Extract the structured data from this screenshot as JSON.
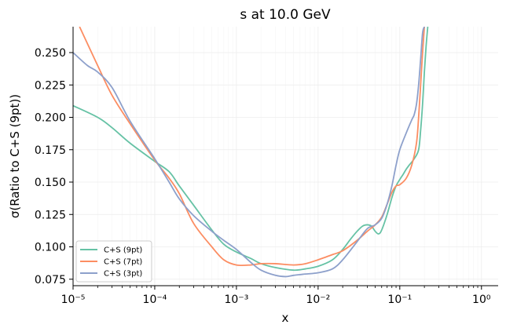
{
  "chart_data": {
    "type": "line",
    "title": "s at 10.0 GeV",
    "xlabel": "x",
    "ylabel": "σ(Ratio to C+S (9pt))",
    "xscale": "log",
    "xlim": [
      1e-05,
      1.6
    ],
    "ylim": [
      0.07,
      0.27
    ],
    "grid": true,
    "legend_position": "lower-left",
    "x_ticks": [
      {
        "value": 1e-05,
        "label": "10⁻⁵"
      },
      {
        "value": 0.0001,
        "label": "10⁻⁴"
      },
      {
        "value": 0.001,
        "label": "10⁻³"
      },
      {
        "value": 0.01,
        "label": "10⁻²"
      },
      {
        "value": 0.1,
        "label": "10⁻¹"
      },
      {
        "value": 1,
        "label": "10⁰"
      }
    ],
    "y_ticks": [
      {
        "value": 0.075,
        "label": "0.075"
      },
      {
        "value": 0.1,
        "label": "0.100"
      },
      {
        "value": 0.125,
        "label": "0.125"
      },
      {
        "value": 0.15,
        "label": "0.150"
      },
      {
        "value": 0.175,
        "label": "0.175"
      },
      {
        "value": 0.2,
        "label": "0.200"
      },
      {
        "value": 0.225,
        "label": "0.225"
      },
      {
        "value": 0.25,
        "label": "0.250"
      }
    ],
    "series": [
      {
        "name": "C+S (9pt)",
        "color": "#66c2a5",
        "x": [
          1e-05,
          2e-05,
          3e-05,
          5e-05,
          0.0001,
          0.00015,
          0.0002,
          0.0003,
          0.0005,
          0.0007,
          0.001,
          0.0015,
          0.002,
          0.003,
          0.005,
          0.007,
          0.01,
          0.015,
          0.02,
          0.025,
          0.03,
          0.035,
          0.04,
          0.045,
          0.05,
          0.055,
          0.06,
          0.07,
          0.08,
          0.09,
          0.1,
          0.11,
          0.12,
          0.13,
          0.15,
          0.17,
          0.18,
          0.19,
          0.2,
          0.21,
          0.22
        ],
        "y": [
          0.209,
          0.2,
          0.192,
          0.18,
          0.166,
          0.158,
          0.147,
          0.132,
          0.113,
          0.102,
          0.096,
          0.091,
          0.087,
          0.084,
          0.082,
          0.083,
          0.085,
          0.09,
          0.098,
          0.106,
          0.112,
          0.116,
          0.117,
          0.116,
          0.112,
          0.11,
          0.113,
          0.125,
          0.138,
          0.147,
          0.152,
          0.156,
          0.16,
          0.163,
          0.168,
          0.175,
          0.19,
          0.21,
          0.235,
          0.255,
          0.27
        ]
      },
      {
        "name": "C+S (7pt)",
        "color": "#fc8d62",
        "x": [
          1.2e-05,
          2e-05,
          3e-05,
          5e-05,
          0.0001,
          0.00015,
          0.0002,
          0.0003,
          0.0005,
          0.0007,
          0.001,
          0.0015,
          0.002,
          0.003,
          0.005,
          0.007,
          0.01,
          0.015,
          0.02,
          0.03,
          0.04,
          0.05,
          0.06,
          0.07,
          0.08,
          0.09,
          0.1,
          0.12,
          0.14,
          0.16,
          0.17,
          0.18,
          0.19,
          0.2
        ],
        "y": [
          0.27,
          0.24,
          0.217,
          0.195,
          0.167,
          0.153,
          0.141,
          0.118,
          0.1,
          0.09,
          0.086,
          0.086,
          0.087,
          0.087,
          0.086,
          0.087,
          0.09,
          0.094,
          0.097,
          0.105,
          0.112,
          0.117,
          0.123,
          0.133,
          0.142,
          0.147,
          0.148,
          0.153,
          0.163,
          0.18,
          0.2,
          0.225,
          0.25,
          0.27
        ]
      },
      {
        "name": "C+S (3pt)",
        "color": "#8da0cb",
        "x": [
          1e-05,
          1.5e-05,
          2e-05,
          3e-05,
          5e-05,
          0.0001,
          0.00015,
          0.0002,
          0.0003,
          0.0005,
          0.0007,
          0.001,
          0.0015,
          0.002,
          0.003,
          0.004,
          0.005,
          0.007,
          0.01,
          0.015,
          0.02,
          0.03,
          0.04,
          0.05,
          0.06,
          0.07,
          0.08,
          0.09,
          0.1,
          0.12,
          0.14,
          0.15,
          0.16,
          0.17,
          0.18,
          0.19,
          0.2
        ],
        "y": [
          0.25,
          0.24,
          0.235,
          0.223,
          0.197,
          0.168,
          0.15,
          0.137,
          0.124,
          0.112,
          0.105,
          0.098,
          0.088,
          0.082,
          0.078,
          0.077,
          0.078,
          0.079,
          0.08,
          0.083,
          0.09,
          0.104,
          0.114,
          0.117,
          0.122,
          0.133,
          0.147,
          0.163,
          0.175,
          0.188,
          0.198,
          0.202,
          0.21,
          0.225,
          0.245,
          0.265,
          0.27
        ]
      }
    ]
  }
}
